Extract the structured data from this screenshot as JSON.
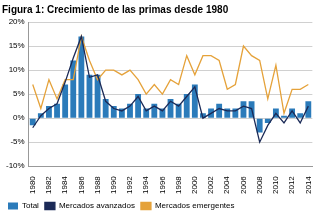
{
  "chart_data": {
    "type": "bar",
    "title": "Figura 1: Crecimiento de las primas desde 1980",
    "categories": [
      "1980",
      null,
      "1982",
      null,
      "1984",
      null,
      "1986",
      null,
      "1988",
      null,
      "1990",
      null,
      "1992",
      null,
      "1994",
      null,
      "1996",
      null,
      "1998",
      null,
      "2000",
      null,
      "2002",
      null,
      "2004",
      null,
      "2006",
      null,
      "2008",
      null,
      "2010",
      null,
      "2012",
      null,
      "2014"
    ],
    "series": [
      {
        "name": "Total",
        "type": "bar",
        "color": "#2b7bba",
        "values": [
          -1.5,
          1,
          2.5,
          3,
          7,
          12,
          17,
          9,
          9,
          4,
          2.5,
          2,
          3,
          5,
          2,
          3,
          2,
          4,
          3,
          5,
          7,
          1,
          2,
          3,
          2,
          2,
          3.5,
          3.5,
          -3,
          -1,
          2,
          0.5,
          2,
          1,
          3.5
        ]
      },
      {
        "name": "Mercados avanzados",
        "type": "line",
        "color": "#1b2a57",
        "values": [
          -2,
          0.5,
          2,
          3,
          7.5,
          12.5,
          17,
          8.5,
          9,
          3.5,
          2,
          1.5,
          2.5,
          4.5,
          1.5,
          2.5,
          1.5,
          3.5,
          2.5,
          4.5,
          6.5,
          0,
          1,
          2,
          1.5,
          1.5,
          2.5,
          2,
          -5,
          -1.5,
          1,
          -1,
          1.5,
          -1,
          2.5
        ]
      },
      {
        "name": "Mercados emergentes",
        "type": "line",
        "color": "#e5a23a",
        "values": [
          7,
          2,
          8,
          4,
          8,
          8,
          17,
          12,
          8,
          10,
          10,
          9,
          10,
          8,
          5,
          7,
          5,
          8,
          7,
          13,
          9,
          13,
          13,
          12,
          6,
          7,
          15,
          13,
          12,
          4,
          11,
          1,
          6,
          6,
          7
        ]
      }
    ],
    "ylim": [
      -10,
      20
    ],
    "yticks": [
      {
        "value": -10,
        "label": "-10%"
      },
      {
        "value": -5,
        "label": "-5%"
      },
      {
        "value": 0,
        "label": "0%"
      },
      {
        "value": 5,
        "label": "5%"
      },
      {
        "value": 10,
        "label": "10%"
      },
      {
        "value": 15,
        "label": "15%"
      },
      {
        "value": 20,
        "label": "20%"
      }
    ],
    "grid": true,
    "legend": "lower left"
  }
}
